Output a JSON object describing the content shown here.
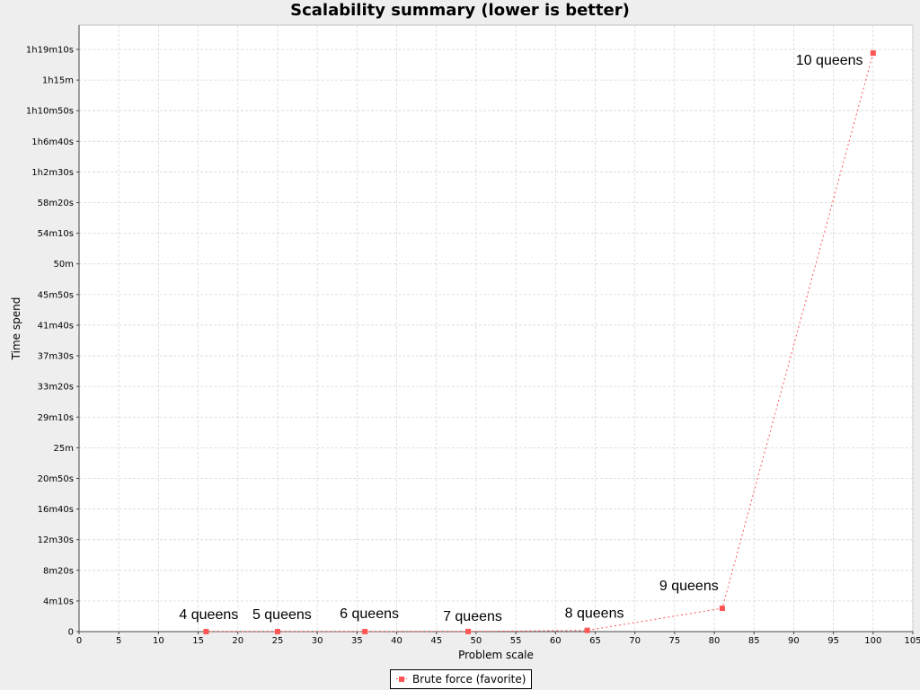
{
  "colors": {
    "background": "#eeeeee",
    "plot_background": "#ffffff",
    "grid": "#d8d8d8",
    "series": "#ff5555"
  },
  "chart_data": {
    "type": "line",
    "title": "Scalability summary (lower is better)",
    "xlabel": "Problem scale",
    "ylabel": "Time spend",
    "xlim": [
      0,
      105
    ],
    "x_ticks": [
      0,
      5,
      10,
      15,
      20,
      25,
      30,
      35,
      40,
      45,
      50,
      55,
      60,
      65,
      70,
      75,
      80,
      85,
      90,
      95,
      100,
      105
    ],
    "ylim_seconds": [
      0,
      4750
    ],
    "y_ticks": [
      {
        "value": 0,
        "label": "0"
      },
      {
        "value": 250,
        "label": "4m10s"
      },
      {
        "value": 500,
        "label": "8m20s"
      },
      {
        "value": 750,
        "label": "12m30s"
      },
      {
        "value": 1000,
        "label": "16m40s"
      },
      {
        "value": 1250,
        "label": "20m50s"
      },
      {
        "value": 1500,
        "label": "25m"
      },
      {
        "value": 1750,
        "label": "29m10s"
      },
      {
        "value": 2000,
        "label": "33m20s"
      },
      {
        "value": 2250,
        "label": "37m30s"
      },
      {
        "value": 2500,
        "label": "41m40s"
      },
      {
        "value": 2750,
        "label": "45m50s"
      },
      {
        "value": 3000,
        "label": "50m"
      },
      {
        "value": 3250,
        "label": "54m10s"
      },
      {
        "value": 3500,
        "label": "58m20s"
      },
      {
        "value": 3750,
        "label": "1h2m30s"
      },
      {
        "value": 4000,
        "label": "1h6m40s"
      },
      {
        "value": 4250,
        "label": "1h10m50s"
      },
      {
        "value": 4500,
        "label": "1h15m"
      },
      {
        "value": 4750,
        "label": "1h19m10s"
      }
    ],
    "grid": true,
    "legend_position": "bottom-center",
    "series": [
      {
        "name": "Brute force (favorite)",
        "x": [
          16,
          25,
          36,
          49,
          64,
          81,
          100
        ],
        "y_seconds": [
          0.01,
          0.05,
          0.2,
          1,
          10,
          190,
          4720
        ],
        "labels": [
          "4 queens",
          "5 queens",
          "6 queens",
          "7 queens",
          "8 queens",
          "9 queens",
          "10 queens"
        ]
      }
    ]
  }
}
